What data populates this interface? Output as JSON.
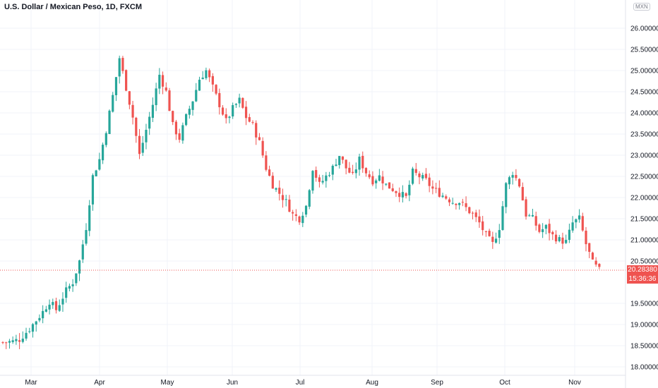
{
  "header": {
    "title": "U.S. Dollar / Mexican Peso, 1D, FXCM"
  },
  "price_axis": {
    "currency": "MXN",
    "last_price": "20.28380",
    "countdown": "15:36:36"
  },
  "colors": {
    "up": "#26a69a",
    "down": "#ef5350",
    "grid": "#f0f3fa",
    "last_price_line": "#ef5350"
  },
  "chart_data": {
    "type": "candlestick",
    "title": "U.S. Dollar / Mexican Peso, 1D, FXCM",
    "x_ticks": [
      "Mar",
      "Apr",
      "May",
      "Jun",
      "Jul",
      "Aug",
      "Sep",
      "Oct",
      "Nov"
    ],
    "y_ticks": [
      "18.00000",
      "18.50000",
      "19.00000",
      "19.50000",
      "20.50000",
      "21.00000",
      "21.50000",
      "22.00000",
      "22.50000",
      "23.00000",
      "23.50000",
      "24.00000",
      "24.50000",
      "25.00000",
      "25.50000",
      "26.00000"
    ],
    "ylim": [
      17.9,
      26.5
    ],
    "grid": true,
    "last_price": 20.2838,
    "close_path": [
      [
        0,
        18.58
      ],
      [
        3,
        18.6
      ],
      [
        5,
        18.65
      ],
      [
        8,
        18.9
      ],
      [
        10,
        19.1
      ],
      [
        12,
        19.3
      ],
      [
        14,
        19.55
      ],
      [
        16,
        19.35
      ],
      [
        19,
        19.8
      ],
      [
        21,
        20.0
      ],
      [
        23,
        20.5
      ],
      [
        25,
        21.3
      ],
      [
        27,
        22.5
      ],
      [
        29,
        22.9
      ],
      [
        31,
        23.6
      ],
      [
        33,
        24.4
      ],
      [
        35,
        25.3
      ],
      [
        37,
        24.6
      ],
      [
        39,
        23.9
      ],
      [
        41,
        23.0
      ],
      [
        43,
        23.6
      ],
      [
        45,
        24.2
      ],
      [
        47,
        24.9
      ],
      [
        49,
        24.5
      ],
      [
        51,
        23.7
      ],
      [
        53,
        23.4
      ],
      [
        55,
        23.9
      ],
      [
        57,
        24.3
      ],
      [
        59,
        24.8
      ],
      [
        61,
        25.0
      ],
      [
        63,
        24.6
      ],
      [
        65,
        24.2
      ],
      [
        67,
        23.8
      ],
      [
        69,
        24.1
      ],
      [
        71,
        24.3
      ],
      [
        73,
        23.9
      ],
      [
        75,
        23.7
      ],
      [
        77,
        23.3
      ],
      [
        79,
        22.7
      ],
      [
        81,
        22.3
      ],
      [
        83,
        22.1
      ],
      [
        85,
        21.9
      ],
      [
        87,
        21.6
      ],
      [
        89,
        21.5
      ],
      [
        91,
        21.8
      ],
      [
        93,
        22.7
      ],
      [
        95,
        22.3
      ],
      [
        97,
        22.5
      ],
      [
        99,
        22.7
      ],
      [
        101,
        23.0
      ],
      [
        103,
        22.7
      ],
      [
        105,
        22.5
      ],
      [
        107,
        22.9
      ],
      [
        109,
        22.6
      ],
      [
        111,
        22.4
      ],
      [
        113,
        22.5
      ],
      [
        115,
        22.3
      ],
      [
        117,
        22.2
      ],
      [
        119,
        22.1
      ],
      [
        121,
        22.0
      ],
      [
        123,
        22.6
      ],
      [
        125,
        22.5
      ],
      [
        127,
        22.4
      ],
      [
        129,
        22.2
      ],
      [
        131,
        22.1
      ],
      [
        133,
        22.0
      ],
      [
        135,
        21.9
      ],
      [
        137,
        21.9
      ],
      [
        139,
        21.75
      ],
      [
        141,
        21.6
      ],
      [
        143,
        21.4
      ],
      [
        145,
        21.1
      ],
      [
        147,
        20.9
      ],
      [
        149,
        21.3
      ],
      [
        151,
        22.3
      ],
      [
        153,
        22.6
      ],
      [
        155,
        22.3
      ],
      [
        157,
        21.6
      ],
      [
        159,
        21.5
      ],
      [
        161,
        21.2
      ],
      [
        163,
        21.3
      ],
      [
        165,
        21.1
      ],
      [
        167,
        21.0
      ],
      [
        169,
        20.95
      ],
      [
        171,
        21.4
      ],
      [
        173,
        21.5
      ],
      [
        175,
        20.9
      ],
      [
        177,
        20.45
      ],
      [
        179,
        20.28
      ]
    ]
  }
}
